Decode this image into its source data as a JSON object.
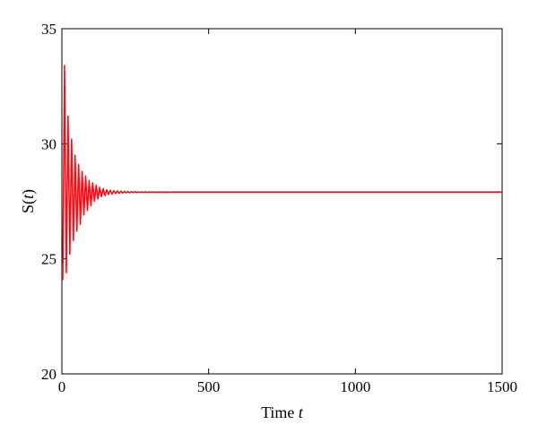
{
  "chart_data": {
    "type": "line",
    "title": "",
    "xlabel": "Time",
    "xlabel_var": "t",
    "ylabel_prefix": "S(",
    "ylabel_var": "t",
    "ylabel_suffix": ")",
    "xlim": [
      0,
      1500
    ],
    "ylim": [
      20,
      35
    ],
    "xticks": [
      0,
      500,
      1000,
      1500
    ],
    "xtick_labels": [
      "0",
      "500",
      "1000",
      "1500"
    ],
    "yticks": [
      20,
      25,
      30,
      35
    ],
    "ytick_labels": [
      "20",
      "25",
      "30",
      "35"
    ],
    "grid": false,
    "legend": "none",
    "line_color": "#e8141c",
    "series": [
      {
        "x": [
          0,
          3,
          9,
          15,
          21,
          27,
          33,
          39,
          45,
          51,
          57,
          63,
          69,
          75,
          81,
          87,
          93,
          99,
          105,
          111,
          117,
          123,
          129,
          135,
          141,
          147,
          153,
          159,
          165,
          171,
          177,
          183,
          189,
          195,
          201,
          207,
          213,
          219,
          225,
          231,
          237,
          243,
          249,
          255,
          261,
          267,
          273,
          279,
          285,
          291,
          297,
          303,
          309,
          315,
          321,
          327,
          333,
          339,
          345,
          351,
          357,
          363,
          369,
          375,
          381,
          387,
          393,
          399,
          405,
          411,
          417,
          423,
          429,
          435,
          441,
          447,
          1500
        ],
        "y": [
          24.8,
          24.1,
          33.4,
          24.4,
          31.2,
          25.2,
          30.2,
          25.8,
          29.5,
          26.2,
          29.1,
          26.5,
          28.8,
          26.9,
          28.6,
          27.1,
          28.4,
          27.3,
          28.3,
          27.5,
          28.2,
          27.6,
          28.1,
          27.7,
          28.05,
          27.75,
          28.0,
          27.8,
          27.98,
          27.82,
          27.96,
          27.84,
          27.95,
          27.85,
          27.94,
          27.86,
          27.93,
          27.87,
          27.93,
          27.87,
          27.92,
          27.88,
          27.92,
          27.88,
          27.91,
          27.89,
          27.91,
          27.89,
          27.91,
          27.89,
          27.905,
          27.895,
          27.905,
          27.895,
          27.903,
          27.897,
          27.903,
          27.897,
          27.902,
          27.898,
          27.902,
          27.898,
          27.901,
          27.899,
          27.901,
          27.899,
          27.9,
          27.9,
          27.9,
          27.9,
          27.9,
          27.9,
          27.9,
          27.9,
          27.9,
          27.9,
          27.9
        ]
      }
    ]
  }
}
